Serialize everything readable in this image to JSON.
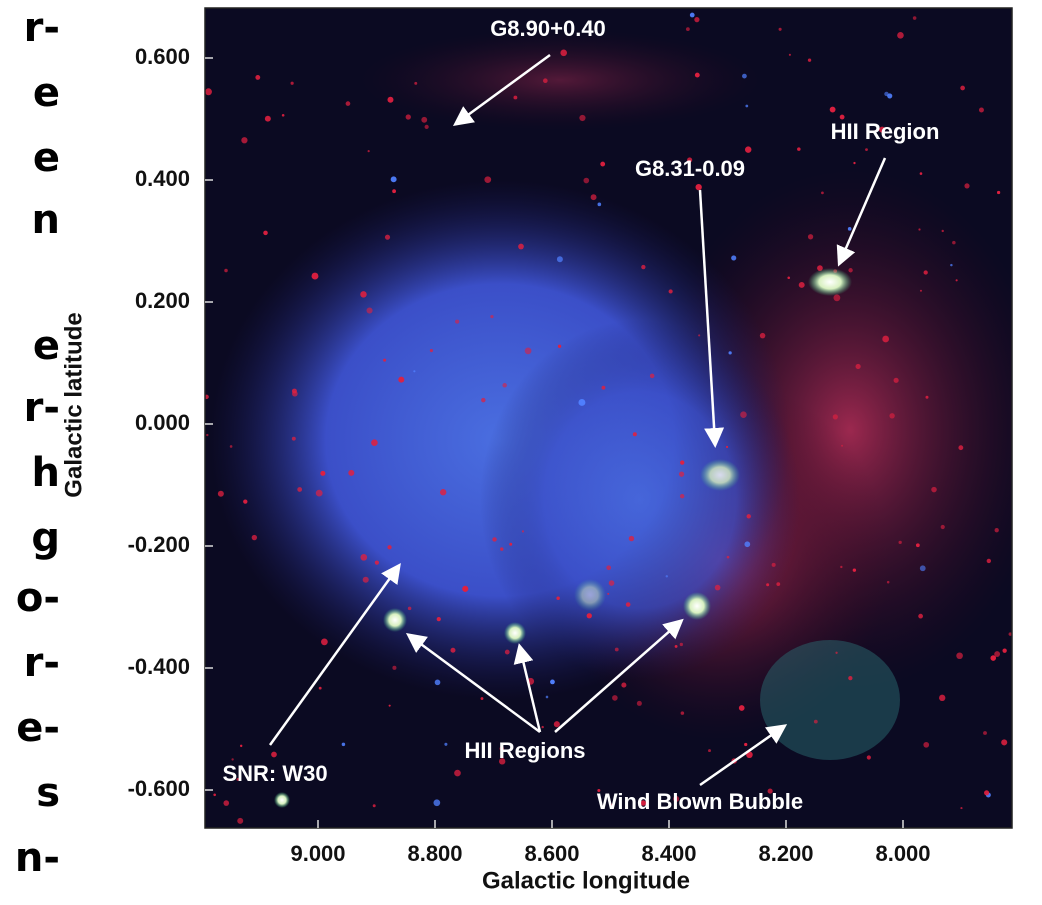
{
  "side_text": [
    "r-",
    "e",
    "e",
    "n",
    "e",
    "r-",
    "h",
    "g",
    "o-",
    "r-",
    "e-",
    "s",
    "n-"
  ],
  "figure": {
    "xlabel": "Galactic longitude",
    "ylabel": "Galactic latitude",
    "xticks": [
      "9.000",
      "8.800",
      "8.600",
      "8.400",
      "8.200",
      "8.000"
    ],
    "yticks": [
      "0.600",
      "0.400",
      "0.200",
      "0.000",
      "-0.200",
      "-0.400",
      "-0.600"
    ],
    "annotations": [
      "G8.90+0.40",
      "HII Region",
      "G8.31-0.09",
      "SNR: W30",
      "HII Regions",
      "Wind Blown Bubble"
    ]
  }
}
